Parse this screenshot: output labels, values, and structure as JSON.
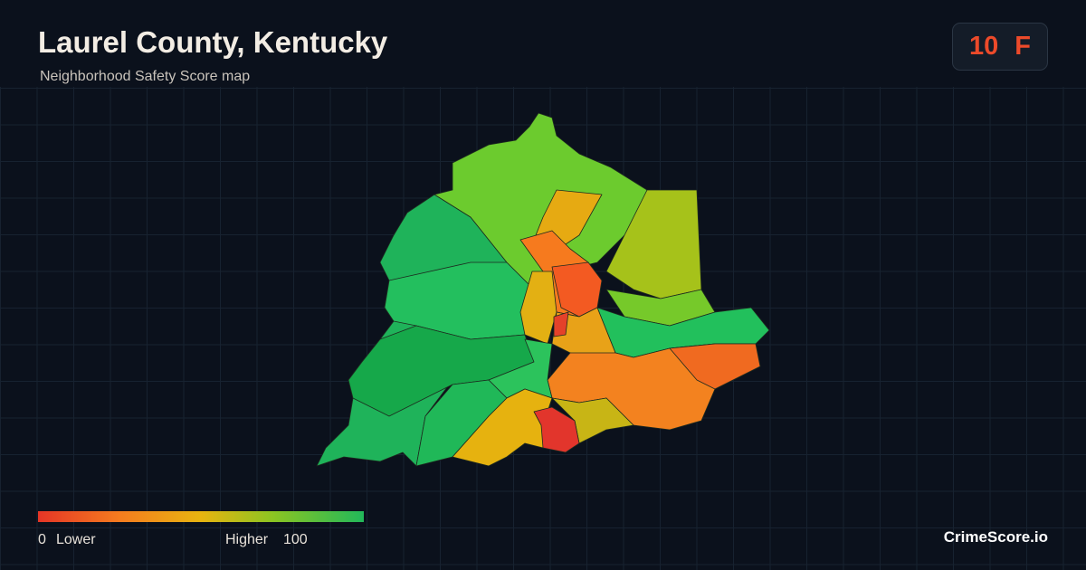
{
  "header": {
    "title": "Laurel County, Kentucky",
    "subtitle": "Neighborhood Safety Score map"
  },
  "score": {
    "value": 10,
    "grade": "F"
  },
  "legend": {
    "min": 0,
    "min_label": "Lower",
    "max_label": "Higher",
    "max": 100
  },
  "brand": "CrimeScore.io"
}
